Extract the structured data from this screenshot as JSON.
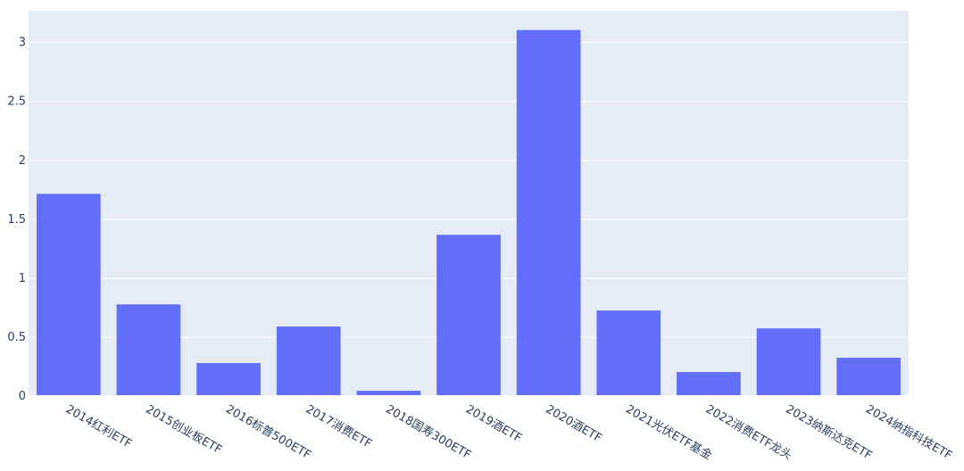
{
  "chart_data": {
    "type": "bar",
    "title": "",
    "xlabel": "",
    "ylabel": "",
    "categories": [
      "2014红利ETF",
      "2015创业板ETF",
      "2016标普500ETF",
      "2017消费ETF",
      "2018国寿300ETF",
      "2019酒ETF",
      "2020酒ETF",
      "2021光伏ETF基金",
      "2022消费ETF龙头",
      "2023纳斯达克ETF",
      "2024纳指科技ETF"
    ],
    "values": [
      1.716,
      0.778,
      0.28,
      0.59,
      0.045,
      1.368,
      3.106,
      0.726,
      0.204,
      0.574,
      0.325
    ],
    "ylim": [
      0,
      3.27
    ],
    "yticks": [
      "0",
      "0.5",
      "1",
      "1.5",
      "2",
      "2.5",
      "3"
    ],
    "grid": true,
    "bar_color": "#636efa",
    "plot_bg": "#e5ecf6"
  }
}
